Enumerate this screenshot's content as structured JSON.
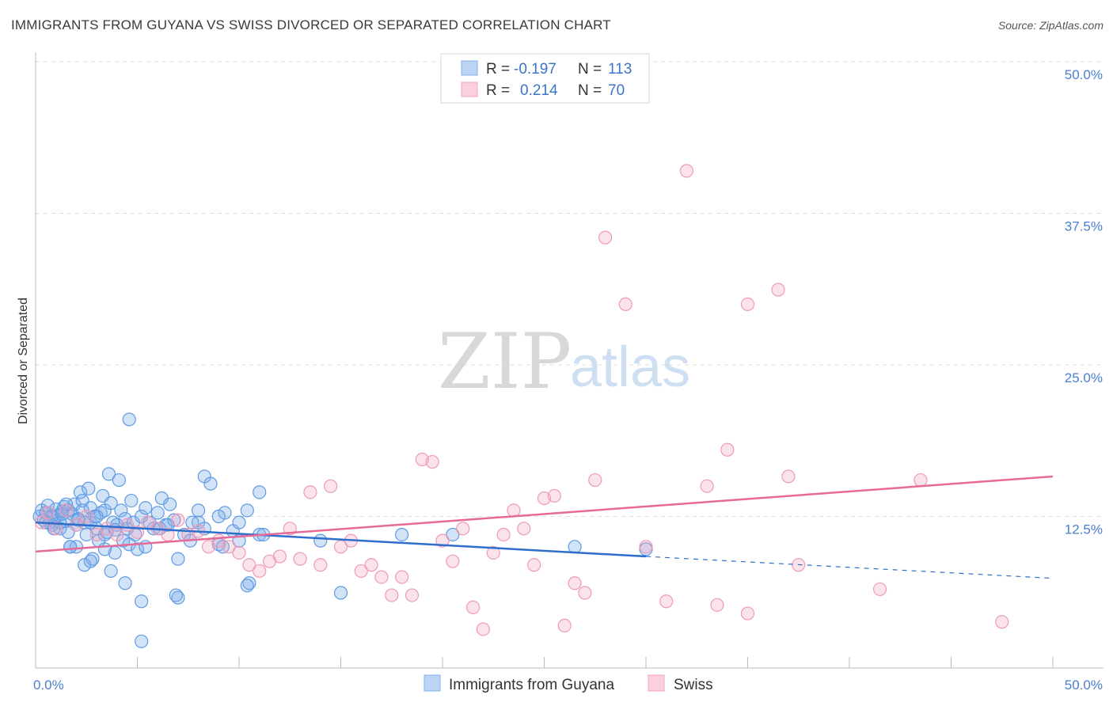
{
  "title": "IMMIGRANTS FROM GUYANA VS SWISS DIVORCED OR SEPARATED CORRELATION CHART",
  "source": "Source: ZipAtlas.com",
  "watermark": {
    "zip": "ZIP",
    "atlas": "atlas"
  },
  "colors": {
    "blue": "#7fb0ea",
    "blue_line": "#2f6fcc",
    "pink": "#f3a3be",
    "pink_line": "#e56a98",
    "tick": "#4a7fcf"
  },
  "chart_data": {
    "type": "scatter",
    "title": "IMMIGRANTS FROM GUYANA VS SWISS DIVORCED OR SEPARATED CORRELATION CHART",
    "xlabel": "",
    "ylabel": "Divorced or Separated",
    "xlim": [
      0,
      50
    ],
    "ylim": [
      0,
      50
    ],
    "x_tick_labels": [
      {
        "value": 0,
        "label": "0.0%"
      },
      {
        "value": 50,
        "label": "50.0%"
      }
    ],
    "y_tick_labels": [
      {
        "value": 12.5,
        "label": "12.5%"
      },
      {
        "value": 25,
        "label": "25.0%"
      },
      {
        "value": 37.5,
        "label": "37.5%"
      },
      {
        "value": 50,
        "label": "50.0%"
      }
    ],
    "legend": [
      {
        "name": "Immigrants from Guyana",
        "r_label": "R =",
        "r": "-0.197",
        "n_label": "N =",
        "n": "113"
      },
      {
        "name": "Swiss",
        "r_label": "R =",
        "r": "0.214",
        "n_label": "N =",
        "n": "70"
      }
    ],
    "series": [
      {
        "name": "Immigrants from Guyana",
        "color": "#7fb0ea",
        "trend": {
          "x0": 0,
          "y0": 12.0,
          "x1": 30,
          "y1": 9.2,
          "dash_x1": 50,
          "dash_y1": 7.4
        },
        "points": [
          [
            0.2,
            12.5
          ],
          [
            0.3,
            13.0
          ],
          [
            0.4,
            12.2
          ],
          [
            0.5,
            12.8
          ],
          [
            0.6,
            13.4
          ],
          [
            0.7,
            12.0
          ],
          [
            0.8,
            11.8
          ],
          [
            0.9,
            12.4
          ],
          [
            1.0,
            13.1
          ],
          [
            1.1,
            12.6
          ],
          [
            1.2,
            11.5
          ],
          [
            1.3,
            12.9
          ],
          [
            1.4,
            13.3
          ],
          [
            1.5,
            12.1
          ],
          [
            1.6,
            11.2
          ],
          [
            1.7,
            10.0
          ],
          [
            1.8,
            12.7
          ],
          [
            1.9,
            13.5
          ],
          [
            2.0,
            11.8
          ],
          [
            2.1,
            12.3
          ],
          [
            2.2,
            14.5
          ],
          [
            2.3,
            13.8
          ],
          [
            2.4,
            12.0
          ],
          [
            2.5,
            11.0
          ],
          [
            2.6,
            14.8
          ],
          [
            2.7,
            13.2
          ],
          [
            2.8,
            9.0
          ],
          [
            2.9,
            12.5
          ],
          [
            3.0,
            11.5
          ],
          [
            3.1,
            10.5
          ],
          [
            3.2,
            12.8
          ],
          [
            3.3,
            14.2
          ],
          [
            3.4,
            13.0
          ],
          [
            3.5,
            11.2
          ],
          [
            3.6,
            16.0
          ],
          [
            3.7,
            13.6
          ],
          [
            3.8,
            12.0
          ],
          [
            3.9,
            9.5
          ],
          [
            4.0,
            11.8
          ],
          [
            4.1,
            15.5
          ],
          [
            4.2,
            13.0
          ],
          [
            4.3,
            10.5
          ],
          [
            4.4,
            12.3
          ],
          [
            4.5,
            11.5
          ],
          [
            4.6,
            10.2
          ],
          [
            4.7,
            13.8
          ],
          [
            4.8,
            12.0
          ],
          [
            4.9,
            11.0
          ],
          [
            5.0,
            9.8
          ],
          [
            5.2,
            12.5
          ],
          [
            5.4,
            13.2
          ],
          [
            5.6,
            12.0
          ],
          [
            5.8,
            11.5
          ],
          [
            6.0,
            12.8
          ],
          [
            6.2,
            14.0
          ],
          [
            6.4,
            11.8
          ],
          [
            6.6,
            13.5
          ],
          [
            6.8,
            12.2
          ],
          [
            7.0,
            9.0
          ],
          [
            7.3,
            11.0
          ],
          [
            7.6,
            10.5
          ],
          [
            8.0,
            12.0
          ],
          [
            8.3,
            15.8
          ],
          [
            8.6,
            15.2
          ],
          [
            9.0,
            10.2
          ],
          [
            9.3,
            12.8
          ],
          [
            9.7,
            11.3
          ],
          [
            10.0,
            12.0
          ],
          [
            10.5,
            7.0
          ],
          [
            11.0,
            14.5
          ],
          [
            1.2,
            12.0
          ],
          [
            1.6,
            13.0
          ],
          [
            2.0,
            10.0
          ],
          [
            2.4,
            8.5
          ],
          [
            0.8,
            12.5
          ],
          [
            1.5,
            13.5
          ],
          [
            2.7,
            12.0
          ],
          [
            3.4,
            11.0
          ],
          [
            3.7,
            8.0
          ],
          [
            4.4,
            7.0
          ],
          [
            4.6,
            20.5
          ],
          [
            5.2,
            5.5
          ],
          [
            5.4,
            10.0
          ],
          [
            6.1,
            11.5
          ],
          [
            7.0,
            5.8
          ],
          [
            7.7,
            12.0
          ],
          [
            8.0,
            13.0
          ],
          [
            9.0,
            12.5
          ],
          [
            10.0,
            10.5
          ],
          [
            10.4,
            13.0
          ],
          [
            11.0,
            11.0
          ],
          [
            0.5,
            12.0
          ],
          [
            0.9,
            11.5
          ],
          [
            1.3,
            12.7
          ],
          [
            1.7,
            10.0
          ],
          [
            2.1,
            12.2
          ],
          [
            2.3,
            13.0
          ],
          [
            2.7,
            8.8
          ],
          [
            3.0,
            12.5
          ],
          [
            3.4,
            9.8
          ],
          [
            3.9,
            11.4
          ],
          [
            5.2,
            2.2
          ],
          [
            6.5,
            11.8
          ],
          [
            6.9,
            6.0
          ],
          [
            8.3,
            11.5
          ],
          [
            9.2,
            10.0
          ],
          [
            10.4,
            6.8
          ],
          [
            11.2,
            11.0
          ],
          [
            14.0,
            10.5
          ],
          [
            15.0,
            6.2
          ],
          [
            18.0,
            11.0
          ],
          [
            20.5,
            11.0
          ],
          [
            26.5,
            10.0
          ],
          [
            30.0,
            9.8
          ]
        ]
      },
      {
        "name": "Swiss",
        "color": "#f3a3be",
        "trend": {
          "x0": 0,
          "y0": 9.6,
          "x1": 50,
          "y1": 15.8
        },
        "points": [
          [
            0.3,
            12.0
          ],
          [
            0.6,
            12.8
          ],
          [
            1.0,
            11.5
          ],
          [
            1.5,
            13.0
          ],
          [
            2.0,
            11.8
          ],
          [
            2.5,
            12.5
          ],
          [
            3.0,
            11.0
          ],
          [
            3.5,
            11.5
          ],
          [
            4.0,
            11.0
          ],
          [
            4.5,
            11.8
          ],
          [
            5.0,
            11.2
          ],
          [
            5.5,
            12.0
          ],
          [
            6.0,
            11.5
          ],
          [
            6.5,
            11.0
          ],
          [
            7.0,
            12.2
          ],
          [
            7.5,
            11.0
          ],
          [
            8.0,
            11.3
          ],
          [
            8.5,
            10.0
          ],
          [
            9.0,
            10.5
          ],
          [
            9.5,
            10.0
          ],
          [
            10.0,
            9.5
          ],
          [
            10.5,
            8.5
          ],
          [
            11.0,
            8.0
          ],
          [
            11.5,
            8.8
          ],
          [
            12.0,
            9.2
          ],
          [
            12.5,
            11.5
          ],
          [
            13.0,
            9.0
          ],
          [
            13.5,
            14.5
          ],
          [
            14.0,
            8.5
          ],
          [
            14.5,
            15.0
          ],
          [
            15.0,
            10.0
          ],
          [
            15.5,
            10.5
          ],
          [
            16.0,
            8.0
          ],
          [
            16.5,
            8.5
          ],
          [
            17.0,
            7.5
          ],
          [
            17.5,
            6.0
          ],
          [
            18.0,
            7.5
          ],
          [
            18.5,
            6.0
          ],
          [
            19.0,
            17.2
          ],
          [
            19.5,
            17.0
          ],
          [
            20.0,
            10.5
          ],
          [
            20.5,
            8.8
          ],
          [
            21.0,
            11.5
          ],
          [
            21.5,
            5.0
          ],
          [
            22.0,
            3.2
          ],
          [
            22.5,
            9.5
          ],
          [
            23.0,
            11.0
          ],
          [
            23.5,
            13.0
          ],
          [
            24.0,
            11.5
          ],
          [
            24.5,
            8.5
          ],
          [
            25.0,
            14.0
          ],
          [
            25.5,
            14.2
          ],
          [
            26.0,
            3.5
          ],
          [
            26.5,
            7.0
          ],
          [
            27.0,
            6.2
          ],
          [
            27.5,
            15.5
          ],
          [
            28.0,
            35.5
          ],
          [
            29.0,
            30.0
          ],
          [
            30.0,
            10.0
          ],
          [
            31.0,
            5.5
          ],
          [
            32.0,
            41.0
          ],
          [
            33.0,
            15.0
          ],
          [
            33.5,
            5.2
          ],
          [
            34.0,
            18.0
          ],
          [
            35.0,
            4.5
          ],
          [
            35.0,
            30.0
          ],
          [
            36.5,
            31.2
          ],
          [
            37.0,
            15.8
          ],
          [
            37.5,
            8.5
          ],
          [
            41.5,
            6.5
          ],
          [
            43.5,
            15.5
          ],
          [
            47.5,
            3.8
          ]
        ]
      }
    ]
  }
}
